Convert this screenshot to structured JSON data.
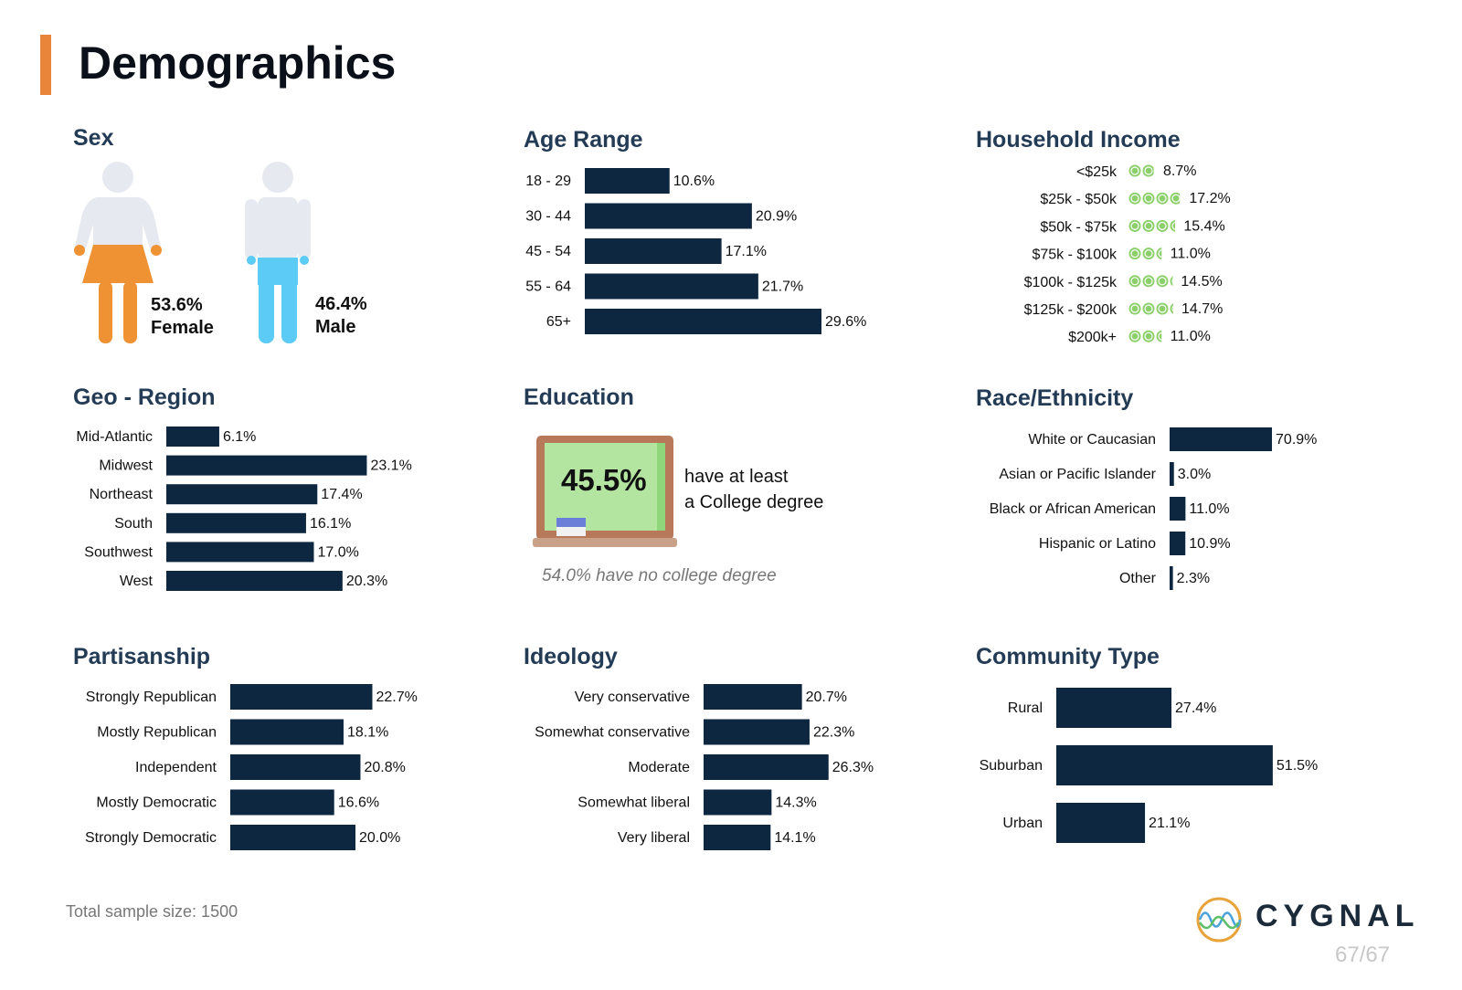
{
  "page_title": "Demographics",
  "colors": {
    "bar": "#0e2741",
    "accent": "#e8853a",
    "female": "#ee9234",
    "male": "#5ccbf5",
    "body": "#e6e9ef",
    "money": "#8bd06a"
  },
  "sex": {
    "title": "Sex",
    "female": {
      "pct": "53.6%",
      "label": "Female"
    },
    "male": {
      "pct": "46.4%",
      "label": "Male"
    }
  },
  "education": {
    "title": "Education",
    "board_pct": "45.5%",
    "line1": "have at least",
    "line2": "a College degree",
    "note": "54.0% have no college degree"
  },
  "footer": {
    "sample": "Total sample size: 1500",
    "page": "67/67",
    "brand": "CYGNAL"
  },
  "chart_data": [
    {
      "id": "age",
      "type": "bar",
      "title": "Age Range",
      "categories": [
        "18 - 29",
        "30 - 44",
        "45 - 54",
        "55 - 64",
        "65+"
      ],
      "values": [
        10.6,
        20.9,
        17.1,
        21.7,
        29.6
      ],
      "labels": [
        "10.6%",
        "20.9%",
        "17.1%",
        "21.7%",
        "29.6%"
      ]
    },
    {
      "id": "income",
      "type": "bar",
      "title": "Household Income",
      "categories": [
        "<$25k",
        "$25k - $50k",
        "$50k - $75k",
        "$75k - $100k",
        "$100k - $125k",
        "$125k - $200k",
        "$200k+"
      ],
      "values": [
        8.7,
        17.2,
        15.4,
        11.0,
        14.5,
        14.7,
        11.0
      ],
      "labels": [
        "8.7%",
        "17.2%",
        "15.4%",
        "11.0%",
        "14.5%",
        "14.7%",
        "11.0%"
      ]
    },
    {
      "id": "geo",
      "type": "bar",
      "title": "Geo - Region",
      "categories": [
        "Mid-Atlantic",
        "Midwest",
        "Northeast",
        "South",
        "Southwest",
        "West"
      ],
      "values": [
        6.1,
        23.1,
        17.4,
        16.1,
        17.0,
        20.3
      ],
      "labels": [
        "6.1%",
        "23.1%",
        "17.4%",
        "16.1%",
        "17.0%",
        "20.3%"
      ]
    },
    {
      "id": "race",
      "type": "bar",
      "title": "Race/Ethnicity",
      "categories": [
        "White or Caucasian",
        "Asian or Pacific Islander",
        "Black or African American",
        "Hispanic or Latino",
        "Other"
      ],
      "values": [
        70.9,
        3.0,
        11.0,
        10.9,
        2.3
      ],
      "labels": [
        "70.9%",
        "3.0%",
        "11.0%",
        "10.9%",
        "2.3%"
      ]
    },
    {
      "id": "party",
      "type": "bar",
      "title": "Partisanship",
      "categories": [
        "Strongly Republican",
        "Mostly Republican",
        "Independent",
        "Mostly Democratic",
        "Strongly Democratic"
      ],
      "values": [
        22.7,
        18.1,
        20.8,
        16.6,
        20.0
      ],
      "labels": [
        "22.7%",
        "18.1%",
        "20.8%",
        "16.6%",
        "20.0%"
      ]
    },
    {
      "id": "ideo",
      "type": "bar",
      "title": "Ideology",
      "categories": [
        "Very conservative",
        "Somewhat conservative",
        "Moderate",
        "Somewhat liberal",
        "Very liberal"
      ],
      "values": [
        20.7,
        22.3,
        26.3,
        14.3,
        14.1
      ],
      "labels": [
        "20.7%",
        "22.3%",
        "26.3%",
        "14.3%",
        "14.1%"
      ]
    },
    {
      "id": "comm",
      "type": "bar",
      "title": "Community Type",
      "categories": [
        "Rural",
        "Suburban",
        "Urban"
      ],
      "values": [
        27.4,
        51.5,
        21.1
      ],
      "labels": [
        "27.4%",
        "51.5%",
        "21.1%"
      ]
    }
  ]
}
